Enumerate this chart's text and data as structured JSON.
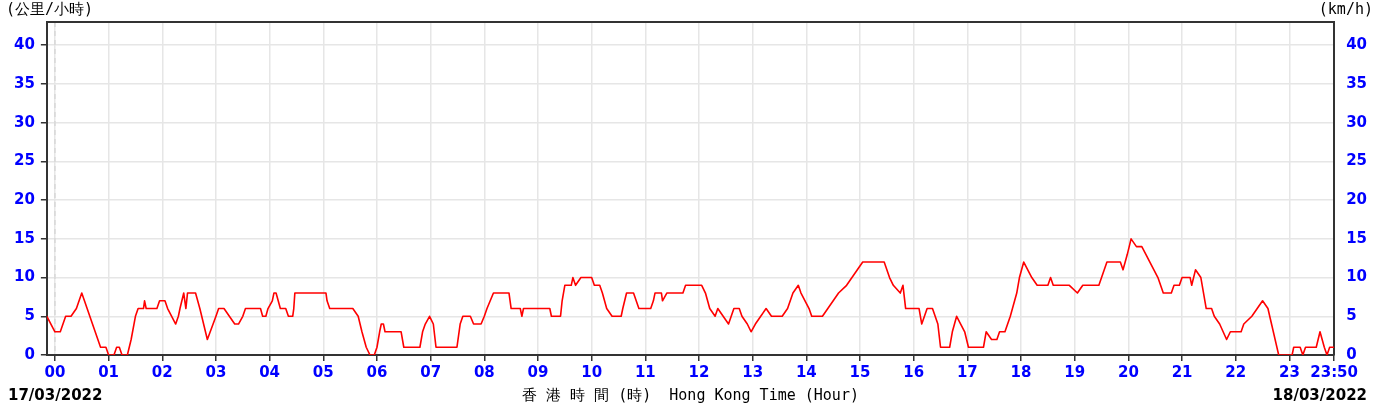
{
  "chart_data": {
    "type": "line",
    "xlabel": "香 港 時 間 (時)  Hong Kong Time (Hour)",
    "ylabel": "(公里/小時)",
    "y2label": "(km/h)",
    "annotations": [
      "17/03/2022",
      "18/03/2022"
    ],
    "xlim": [
      -0.15,
      23.833
    ],
    "xticks": [
      {
        "value": 0,
        "label": "00"
      },
      {
        "value": 1,
        "label": "01"
      },
      {
        "value": 2,
        "label": "02"
      },
      {
        "value": 3,
        "label": "03"
      },
      {
        "value": 4,
        "label": "04"
      },
      {
        "value": 5,
        "label": "05"
      },
      {
        "value": 6,
        "label": "06"
      },
      {
        "value": 7,
        "label": "07"
      },
      {
        "value": 8,
        "label": "08"
      },
      {
        "value": 9,
        "label": "09"
      },
      {
        "value": 10,
        "label": "10"
      },
      {
        "value": 11,
        "label": "11"
      },
      {
        "value": 12,
        "label": "12"
      },
      {
        "value": 13,
        "label": "13"
      },
      {
        "value": 14,
        "label": "14"
      },
      {
        "value": 15,
        "label": "15"
      },
      {
        "value": 16,
        "label": "16"
      },
      {
        "value": 17,
        "label": "17"
      },
      {
        "value": 18,
        "label": "18"
      },
      {
        "value": 19,
        "label": "19"
      },
      {
        "value": 20,
        "label": "20"
      },
      {
        "value": 21,
        "label": "21"
      },
      {
        "value": 22,
        "label": "22"
      },
      {
        "value": 23,
        "label": "23"
      },
      {
        "value": 23.833,
        "label": "23:50"
      }
    ],
    "ylim": [
      0,
      43
    ],
    "yticks": [
      0,
      5,
      10,
      15,
      20,
      25,
      30,
      35,
      40
    ],
    "y2lim": [
      0,
      43
    ],
    "y2ticks": [
      0,
      5,
      10,
      15,
      20,
      25,
      30,
      35,
      40
    ],
    "grid": true,
    "legend": false,
    "marker": "none",
    "line_style": "solid",
    "ref_lines": [
      {
        "axis": "x",
        "value": 0,
        "color": "#d8d8d8",
        "line_style": "dashed"
      }
    ],
    "series": [
      {
        "color": "#ff0000",
        "x": [
          -0.15,
          0,
          0.1,
          0.2,
          0.3,
          0.4,
          0.45,
          0.5,
          0.55,
          0.6,
          0.7,
          0.75,
          0.85,
          0.95,
          1.0,
          1.1,
          1.15,
          1.2,
          1.25,
          1.35,
          1.42,
          1.5,
          1.55,
          1.65,
          1.67,
          1.7,
          1.9,
          1.95,
          2.05,
          2.1,
          2.25,
          2.3,
          2.33,
          2.4,
          2.44,
          2.47,
          2.62,
          2.7,
          2.84,
          3.0,
          3.05,
          3.15,
          3.25,
          3.35,
          3.42,
          3.5,
          3.55,
          3.83,
          3.87,
          3.93,
          3.97,
          4.05,
          4.08,
          4.12,
          4.2,
          4.3,
          4.35,
          4.43,
          4.45,
          4.47,
          5.05,
          5.07,
          5.12,
          5.3,
          5.55,
          5.65,
          5.72,
          5.8,
          5.87,
          5.95,
          6.0,
          6.05,
          6.08,
          6.12,
          6.15,
          6.45,
          6.5,
          6.8,
          6.85,
          6.9,
          6.98,
          7.05,
          7.1,
          7.49,
          7.55,
          7.6,
          7.74,
          7.8,
          7.94,
          8.0,
          8.05,
          8.17,
          8.46,
          8.5,
          8.67,
          8.7,
          8.73,
          9.22,
          9.25,
          9.42,
          9.45,
          9.5,
          9.62,
          9.65,
          9.7,
          9.8,
          10.0,
          10.05,
          10.15,
          10.2,
          10.28,
          10.38,
          10.55,
          10.58,
          10.65,
          10.78,
          10.88,
          11.1,
          11.15,
          11.18,
          11.3,
          11.32,
          11.4,
          11.7,
          11.75,
          12.05,
          12.12,
          12.2,
          12.3,
          12.35,
          12.45,
          12.55,
          12.65,
          12.75,
          12.8,
          12.9,
          12.97,
          13.05,
          13.15,
          13.25,
          13.35,
          13.55,
          13.65,
          13.75,
          13.85,
          13.9,
          14.05,
          14.1,
          14.3,
          14.4,
          14.6,
          14.75,
          14.85,
          15.05,
          15.45,
          15.55,
          15.62,
          15.75,
          15.8,
          15.85,
          16.1,
          16.15,
          16.25,
          16.35,
          16.45,
          16.5,
          16.67,
          16.72,
          16.8,
          16.95,
          17.02,
          17.3,
          17.35,
          17.45,
          17.55,
          17.6,
          17.7,
          17.8,
          17.92,
          17.97,
          18.05,
          18.2,
          18.3,
          18.5,
          18.55,
          18.6,
          18.9,
          19.05,
          19.15,
          19.45,
          19.55,
          19.6,
          19.85,
          19.9,
          19.98,
          20.05,
          20.15,
          20.25,
          20.4,
          20.55,
          20.65,
          20.8,
          20.85,
          20.95,
          21.0,
          21.15,
          21.18,
          21.25,
          21.35,
          21.45,
          21.55,
          21.6,
          21.7,
          21.83,
          21.9,
          22.1,
          22.15,
          22.3,
          22.4,
          22.5,
          22.6,
          22.8,
          23.05,
          23.08,
          23.2,
          23.25,
          23.3,
          23.5,
          23.57,
          23.65,
          23.7,
          23.75,
          23.833
        ],
        "values": [
          5,
          3,
          3,
          5,
          5,
          6,
          7,
          8,
          7,
          6,
          4,
          3,
          1,
          1,
          0,
          0,
          1,
          1,
          0,
          0,
          2,
          5,
          6,
          6,
          7,
          6,
          6,
          7,
          7,
          6,
          4,
          5,
          6,
          8,
          6,
          8,
          8,
          6,
          2,
          5,
          6,
          6,
          5,
          4,
          4,
          5,
          6,
          6,
          5,
          5,
          6,
          7,
          8,
          8,
          6,
          6,
          5,
          5,
          6,
          8,
          8,
          7,
          6,
          6,
          6,
          5,
          3,
          1,
          0,
          0,
          1,
          3,
          4,
          4,
          3,
          3,
          1,
          1,
          3,
          4,
          5,
          4,
          1,
          1,
          4,
          5,
          5,
          4,
          4,
          5,
          6,
          8,
          8,
          6,
          6,
          5,
          6,
          6,
          5,
          5,
          7,
          9,
          9,
          10,
          9,
          10,
          10,
          9,
          9,
          8,
          6,
          5,
          5,
          6,
          8,
          8,
          6,
          6,
          7,
          8,
          8,
          7,
          8,
          8,
          9,
          9,
          8,
          6,
          5,
          6,
          5,
          4,
          6,
          6,
          5,
          4,
          3,
          4,
          5,
          6,
          5,
          5,
          6,
          8,
          9,
          8,
          6,
          5,
          5,
          6,
          8,
          9,
          10,
          12,
          12,
          10,
          9,
          8,
          9,
          6,
          6,
          4,
          6,
          6,
          4,
          1,
          1,
          3,
          5,
          3,
          1,
          1,
          3,
          2,
          2,
          3,
          3,
          5,
          8,
          10,
          12,
          10,
          9,
          9,
          10,
          9,
          9,
          8,
          9,
          9,
          11,
          12,
          12,
          11,
          13,
          15,
          14,
          14,
          12,
          10,
          8,
          8,
          9,
          9,
          10,
          10,
          9,
          11,
          10,
          6,
          6,
          5,
          4,
          2,
          3,
          3,
          4,
          5,
          6,
          7,
          6,
          0,
          0,
          1,
          1,
          0,
          1,
          1,
          3,
          1,
          0,
          1,
          1
        ]
      }
    ]
  }
}
